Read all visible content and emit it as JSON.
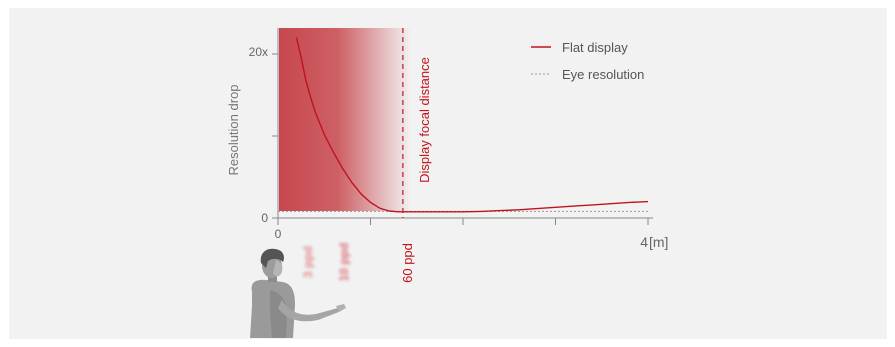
{
  "colors": {
    "panel": "#f2f2f2",
    "accent_red": "#c0141c",
    "gradient_red": "#c7474d",
    "axis": "#888888",
    "eye_line": "#999999"
  },
  "chart_data": {
    "type": "line",
    "xlabel": "",
    "x_unit": "[m]",
    "ylabel": "Resolution drop",
    "xlim": [
      0,
      4
    ],
    "ylim": [
      0,
      20
    ],
    "x_tick_labels": [
      "0",
      "",
      "",
      "",
      "4"
    ],
    "x_ticks": [
      0,
      1,
      2,
      3,
      4
    ],
    "y_ticks": [
      0,
      10,
      20
    ],
    "y_tick_labels": [
      "0",
      "",
      "20x"
    ],
    "legend_position": "top-right",
    "series": [
      {
        "name": "Flat display",
        "color": "#c0141c",
        "style": "solid",
        "x": [
          0.2,
          0.25,
          0.3,
          0.35,
          0.4,
          0.5,
          0.6,
          0.7,
          0.8,
          0.9,
          1.0,
          1.1,
          1.2,
          1.3,
          1.5,
          1.8,
          2.0,
          2.2,
          2.4,
          2.6,
          2.8,
          3.0,
          3.2,
          3.4,
          3.6,
          3.8,
          4.0
        ],
        "y": [
          22,
          19.6,
          16.8,
          14.8,
          13.0,
          10.2,
          8.0,
          6.0,
          4.3,
          2.9,
          1.9,
          1.2,
          0.85,
          0.75,
          0.75,
          0.75,
          0.75,
          0.8,
          0.9,
          1.0,
          1.15,
          1.3,
          1.45,
          1.6,
          1.75,
          1.9,
          2.0
        ]
      },
      {
        "name": "Eye resolution",
        "color": "#999999",
        "style": "dashed",
        "x": [
          0,
          4
        ],
        "y": [
          0.8,
          0.8
        ]
      }
    ],
    "annotations": {
      "focal_distance_label": "Display focal distance",
      "focal_distance_x": 1.35,
      "focal_ppd_label": "60 ppd",
      "near_ppd_labels": [
        "3 ppd",
        "10 ppd"
      ]
    }
  }
}
